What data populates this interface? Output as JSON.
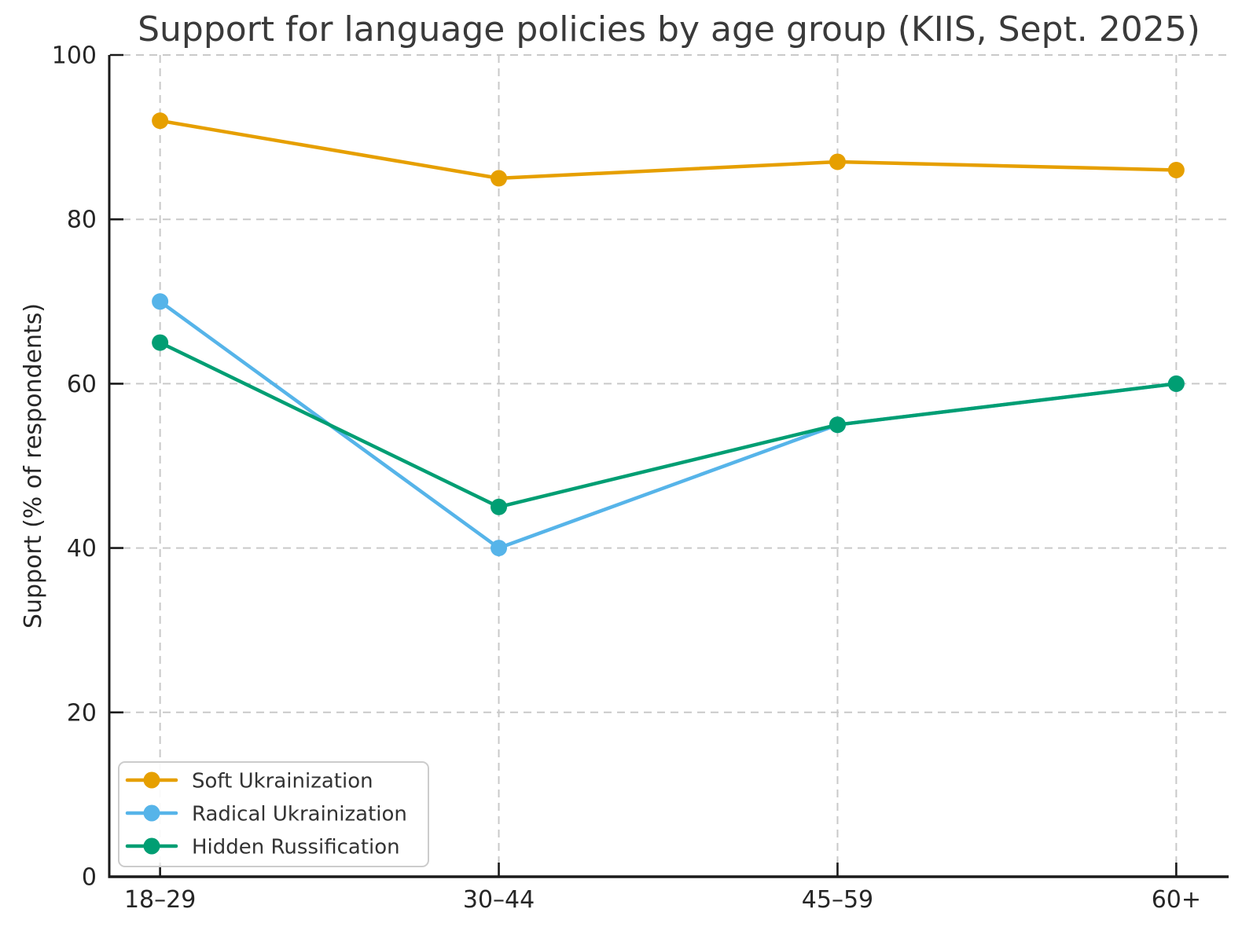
{
  "chart_data": {
    "type": "line",
    "title": "Support for language policies by age group (KIIS, Sept. 2025)",
    "xlabel": "",
    "ylabel": "Support (% of respondents)",
    "categories": [
      "18–29",
      "30–44",
      "45–59",
      "60+"
    ],
    "series": [
      {
        "name": "Soft Ukrainization",
        "color": "#E69F00",
        "values": [
          92,
          85,
          87,
          86
        ]
      },
      {
        "name": "Radical Ukrainization",
        "color": "#56B4E9",
        "values": [
          70,
          40,
          55,
          60
        ]
      },
      {
        "name": "Hidden Russification",
        "color": "#009E73",
        "values": [
          65,
          45,
          55,
          60
        ]
      }
    ],
    "ylim": [
      0,
      100
    ],
    "yticks": [
      0,
      20,
      40,
      60,
      80,
      100
    ],
    "grid": true,
    "grid_style": "dashed",
    "legend_position": "lower left",
    "marker": "circle"
  }
}
